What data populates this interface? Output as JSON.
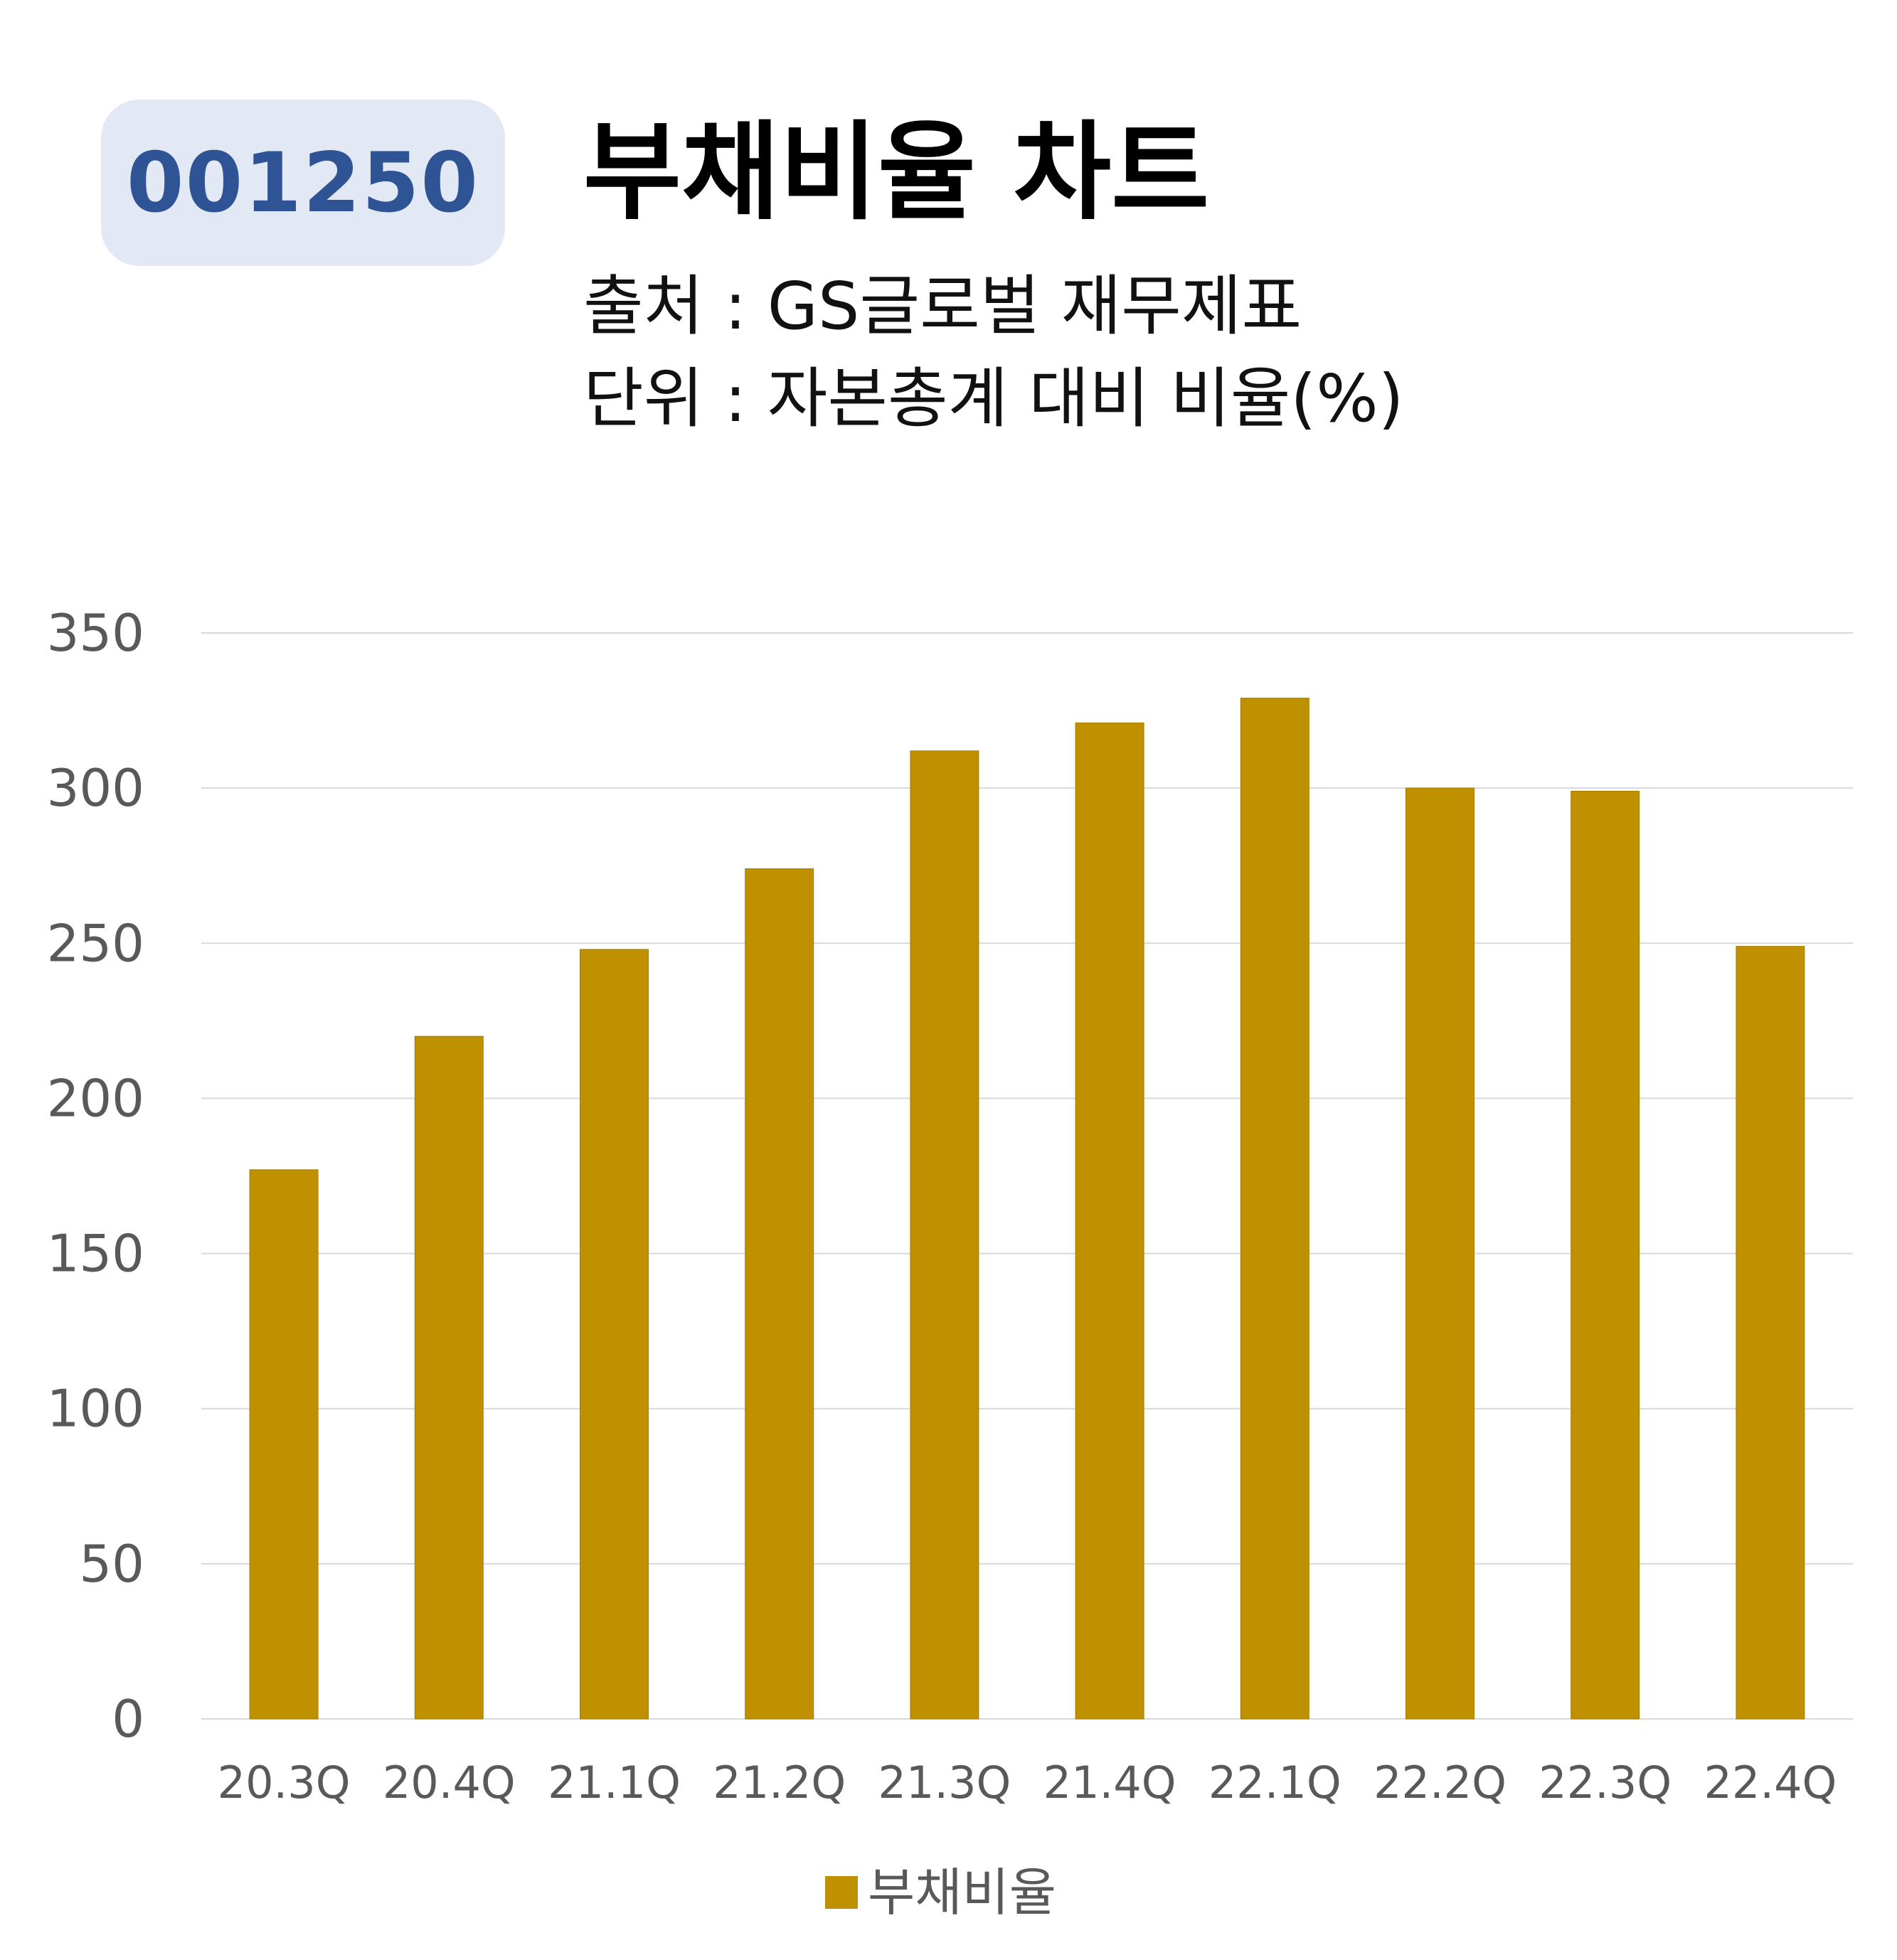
{
  "header": {
    "code": "001250",
    "title": "부채비율 차트",
    "source": "출처 : GS글로벌 재무제표",
    "unit": "단위 : 자본총계 대비 비율(%)"
  },
  "colors": {
    "bar": "#bf9000",
    "grid": "#d9d9d9",
    "axis_text": "#595959",
    "badge_bg": "#e3e9f4",
    "badge_text": "#2f5496"
  },
  "chart_data": {
    "type": "bar",
    "categories": [
      "20.3Q",
      "20.4Q",
      "21.1Q",
      "21.2Q",
      "21.3Q",
      "21.4Q",
      "22.1Q",
      "22.2Q",
      "22.3Q",
      "22.4Q"
    ],
    "series": [
      {
        "name": "부채비율",
        "values": [
          177,
          220,
          248,
          274,
          312,
          321,
          329,
          300,
          299,
          249
        ]
      }
    ],
    "ylim": [
      0,
      350
    ],
    "yticks": [
      0,
      50,
      100,
      150,
      200,
      250,
      300,
      350
    ],
    "grid": true,
    "legend": "bottom"
  }
}
